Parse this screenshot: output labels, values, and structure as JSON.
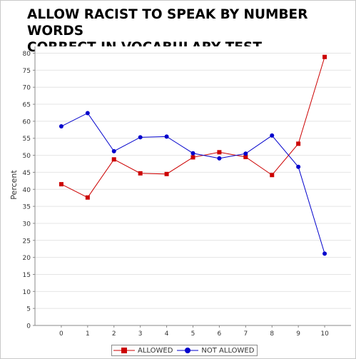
{
  "chart_data": {
    "type": "line",
    "title": "ALLOW RACIST TO SPEAK BY NUMBER WORDS\nCORRECT IN VOCABULARY TEST",
    "xlabel": "",
    "ylabel": "Percent",
    "categories": [
      "0",
      "1",
      "2",
      "3",
      "4",
      "5",
      "6",
      "7",
      "8",
      "9",
      "10"
    ],
    "ylim": [
      0,
      82
    ],
    "yticks": [
      0,
      5,
      10,
      15,
      20,
      25,
      30,
      35,
      40,
      45,
      50,
      55,
      60,
      65,
      70,
      75,
      80
    ],
    "grid": true,
    "legend_position": "bottom",
    "series": [
      {
        "name": "ALLOWED",
        "color": "#cc0000",
        "marker": "square",
        "values": [
          41.5,
          37.6,
          48.8,
          44.7,
          44.5,
          49.4,
          50.9,
          49.5,
          44.2,
          53.4,
          78.9
        ]
      },
      {
        "name": "NOT ALLOWED",
        "color": "#0000cc",
        "marker": "circle",
        "values": [
          58.5,
          62.4,
          51.2,
          55.3,
          55.5,
          50.6,
          49.1,
          50.5,
          55.8,
          46.6,
          21.1
        ]
      }
    ]
  }
}
